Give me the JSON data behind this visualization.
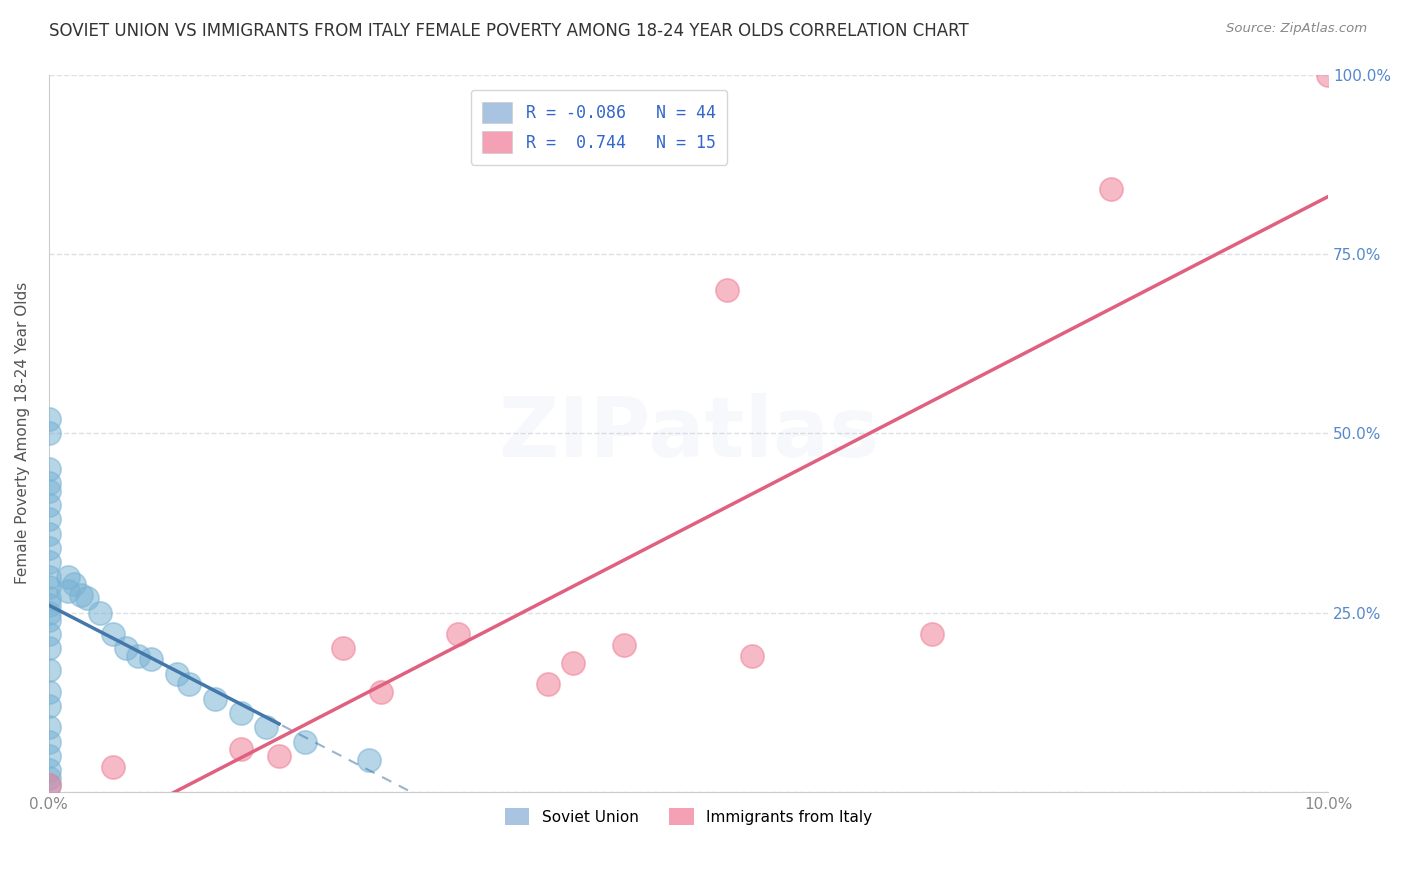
{
  "title": "SOVIET UNION VS IMMIGRANTS FROM ITALY FEMALE POVERTY AMONG 18-24 YEAR OLDS CORRELATION CHART",
  "source": "Source: ZipAtlas.com",
  "ylabel": "Female Poverty Among 18-24 Year Olds",
  "xlim": [
    0.0,
    10.0
  ],
  "ylim": [
    0.0,
    100.0
  ],
  "soviet_x": [
    0.0,
    0.0,
    0.0,
    0.0,
    0.0,
    0.0,
    0.0,
    0.0,
    0.0,
    0.0,
    0.0,
    0.0,
    0.0,
    0.0,
    0.0,
    0.0,
    0.0,
    0.0,
    0.0,
    0.0,
    0.0,
    0.0,
    0.0,
    0.0,
    0.0,
    0.0,
    0.0,
    0.15,
    0.15,
    0.2,
    0.25,
    0.3,
    0.4,
    0.5,
    0.6,
    0.7,
    0.8,
    1.0,
    1.1,
    1.3,
    1.5,
    1.7,
    2.0,
    2.5
  ],
  "soviet_y": [
    52.0,
    50.0,
    45.0,
    43.0,
    42.0,
    40.0,
    38.0,
    36.0,
    34.0,
    32.0,
    30.0,
    28.5,
    27.0,
    26.0,
    25.0,
    24.0,
    22.0,
    20.0,
    17.0,
    14.0,
    12.0,
    9.0,
    7.0,
    5.0,
    3.0,
    2.0,
    1.0,
    30.0,
    28.0,
    29.0,
    27.5,
    27.0,
    25.0,
    22.0,
    20.0,
    19.0,
    18.5,
    16.5,
    15.0,
    13.0,
    11.0,
    9.0,
    7.0,
    4.5
  ],
  "italy_x": [
    0.0,
    0.5,
    1.5,
    1.8,
    2.3,
    2.6,
    3.2,
    3.9,
    4.1,
    4.5,
    5.3,
    5.5,
    6.9,
    8.3,
    10.0
  ],
  "italy_y": [
    1.0,
    3.5,
    6.0,
    5.0,
    20.0,
    14.0,
    22.0,
    15.0,
    18.0,
    20.5,
    70.0,
    19.0,
    22.0,
    84.0,
    100.0
  ],
  "soviet_color": "#7ab3d4",
  "italy_color": "#f08098",
  "soviet_line_color": "#4477aa",
  "italy_line_color": "#e06080",
  "bg_color": "#ffffff",
  "grid_color": "#d8d8e0",
  "watermark": "ZIPatlas",
  "right_axis_color": "#5588cc",
  "title_fontsize": 12,
  "watermark_alpha": 0.12,
  "soviet_solid_xlim": [
    0.0,
    1.8
  ],
  "soviet_dashed_xlim": [
    0.0,
    7.5
  ]
}
